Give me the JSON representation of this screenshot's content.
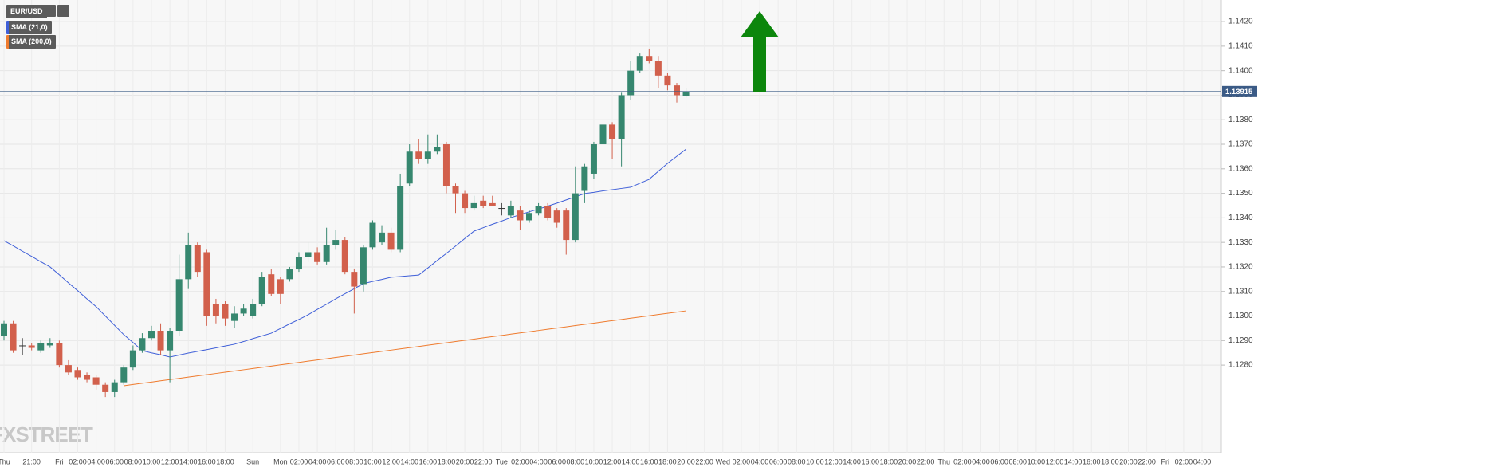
{
  "chart_data": {
    "type": "candlestick",
    "symbol": "EUR/USD",
    "watermark": "FXSTREET",
    "up_color": "#36876f",
    "down_color": "#d2604c",
    "doji_color": "#333333",
    "grid": true,
    "ylim": [
      1.12443,
      1.14288
    ],
    "yticks": [
      {
        "value": 1.128,
        "label": "1.1280"
      },
      {
        "value": 1.129,
        "label": "1.1290"
      },
      {
        "value": 1.13,
        "label": "1.1300"
      },
      {
        "value": 1.131,
        "label": "1.1310"
      },
      {
        "value": 1.132,
        "label": "1.1320"
      },
      {
        "value": 1.133,
        "label": "1.1330"
      },
      {
        "value": 1.134,
        "label": "1.1340"
      },
      {
        "value": 1.135,
        "label": "1.1350"
      },
      {
        "value": 1.136,
        "label": "1.1360"
      },
      {
        "value": 1.137,
        "label": "1.1370"
      },
      {
        "value": 1.138,
        "label": "1.1380"
      },
      {
        "value": 1.139,
        "label": "1.1390"
      },
      {
        "value": 1.14,
        "label": "1.1400"
      },
      {
        "value": 1.141,
        "label": "1.1410"
      },
      {
        "value": 1.142,
        "label": "1.1420"
      }
    ],
    "last_price": 1.13915,
    "last_price_color": "#3b5b86",
    "categories": [
      "Thu",
      null,
      null,
      "21:00",
      null,
      null,
      "Fri",
      null,
      "02:00",
      null,
      "04:00",
      null,
      "06:00",
      null,
      "08:00",
      null,
      "10:00",
      null,
      "12:00",
      null,
      "14:00",
      null,
      "16:00",
      null,
      "18:00",
      null,
      null,
      "Sun",
      null,
      null,
      "Mon",
      null,
      "02:00",
      null,
      "04:00",
      null,
      "06:00",
      null,
      "08:00",
      null,
      "10:00",
      null,
      "12:00",
      null,
      "14:00",
      null,
      "16:00",
      null,
      "18:00",
      null,
      "20:00",
      null,
      "22:00",
      null,
      "Tue",
      null,
      "02:00",
      null,
      "04:00",
      null,
      "06:00",
      null,
      "08:00",
      null,
      "10:00",
      null,
      "12:00",
      null,
      "14:00",
      null,
      "16:00",
      null,
      "18:00",
      null,
      "20:00",
      null,
      "22:00",
      null,
      "Wed",
      null,
      "02:00",
      null,
      "04:00",
      null,
      "06:00",
      null,
      "08:00",
      null,
      "10:00",
      null,
      "12:00",
      null,
      "14:00",
      null,
      "16:00",
      null,
      "18:00",
      null,
      "20:00",
      null,
      "22:00",
      null,
      "Thu",
      null,
      "02:00",
      null,
      "04:00",
      null,
      "06:00",
      null,
      "08:00",
      null,
      "10:00",
      null,
      "12:00",
      null,
      "14:00",
      null,
      "16:00",
      null,
      "18:00",
      null,
      "20:00",
      null,
      "22:00",
      null,
      "Fri",
      null,
      "02:00",
      null,
      "04:00"
    ],
    "open": [
      1.1292,
      1.1297,
      1.1288,
      1.1288,
      1.1286,
      1.1288,
      1.1289,
      1.128,
      1.1278,
      1.1276,
      1.1275,
      1.1272,
      1.1269,
      1.1273,
      1.1279,
      1.1286,
      1.1291,
      1.1294,
      1.1286,
      1.1294,
      1.1315,
      1.1329,
      1.1326,
      1.1305,
      1.1305,
      1.1298,
      1.1301,
      1.13,
      1.1305,
      1.1317,
      1.1315,
      1.1315,
      1.1319,
      1.1324,
      1.1326,
      1.1322,
      1.1329,
      1.1331,
      1.1318,
      1.1313,
      1.1328,
      1.133,
      1.1334,
      1.1327,
      1.1354,
      1.1367,
      1.1364,
      1.1367,
      1.137,
      1.1353,
      1.135,
      1.1344,
      1.1347,
      1.1346,
      1.1344,
      1.1341,
      1.1343,
      1.1339,
      1.1342,
      1.1345,
      1.1343,
      1.1343,
      1.1331,
      1.1351,
      1.1358,
      1.137,
      1.1378,
      1.1372,
      1.139,
      1.14,
      1.1406,
      1.1404,
      1.1398,
      1.1394,
      1.13895,
      null,
      null,
      null,
      null,
      null,
      null,
      null,
      null,
      null,
      null,
      null,
      null,
      null,
      null,
      null,
      null,
      null,
      null,
      null,
      null,
      null,
      null,
      null,
      null,
      null,
      null,
      null,
      null,
      null,
      null,
      null,
      null,
      null,
      null,
      null,
      null,
      null,
      null,
      null,
      null,
      null,
      null,
      null,
      null,
      null,
      null,
      null,
      null,
      null,
      null,
      null,
      null,
      null,
      null,
      null,
      null
    ],
    "high": [
      1.1298,
      1.1298,
      1.1291,
      1.1289,
      1.129,
      1.1291,
      1.129,
      1.1282,
      1.1279,
      1.1277,
      1.1276,
      1.1273,
      1.1274,
      1.128,
      1.1288,
      1.1293,
      1.1296,
      1.1297,
      1.1295,
      1.1325,
      1.1334,
      1.133,
      1.1327,
      1.1307,
      1.1306,
      1.1304,
      1.1305,
      1.1307,
      1.1318,
      1.1319,
      1.1316,
      1.132,
      1.1326,
      1.133,
      1.1328,
      1.1336,
      1.1335,
      1.1332,
      1.1319,
      1.1329,
      1.1339,
      1.1337,
      1.1336,
      1.1358,
      1.137,
      1.1372,
      1.1374,
      1.1374,
      1.1371,
      1.1354,
      1.1351,
      1.1349,
      1.1349,
      1.1349,
      1.1346,
      1.1347,
      1.1345,
      1.1343,
      1.1346,
      1.1346,
      1.1344,
      1.1344,
      1.1361,
      1.1362,
      1.1371,
      1.1381,
      1.1379,
      1.1391,
      1.1404,
      1.1407,
      1.1409,
      1.1406,
      1.1399,
      1.1395,
      1.1393,
      null,
      null,
      null,
      null,
      null,
      null,
      null,
      null,
      null,
      null,
      null,
      null,
      null,
      null,
      null,
      null,
      null,
      null,
      null,
      null,
      null,
      null,
      null,
      null,
      null,
      null,
      null,
      null,
      null,
      null,
      null,
      null,
      null,
      null,
      null,
      null,
      null,
      null,
      null,
      null,
      null,
      null,
      null,
      null,
      null,
      null,
      null,
      null,
      null,
      null,
      null,
      null,
      null,
      null,
      null,
      null
    ],
    "low": [
      1.129,
      1.1285,
      1.1284,
      1.1286,
      1.1285,
      1.1287,
      1.1279,
      1.1276,
      1.1274,
      1.1273,
      1.127,
      1.1267,
      1.1267,
      1.1272,
      1.1278,
      1.1285,
      1.129,
      1.1284,
      1.1273,
      1.1292,
      1.1311,
      1.1316,
      1.1296,
      1.1297,
      1.1296,
      1.1295,
      1.13,
      1.1299,
      1.1304,
      1.1308,
      1.1305,
      1.1314,
      1.1318,
      1.1322,
      1.1321,
      1.1321,
      1.1327,
      1.1317,
      1.1301,
      1.131,
      1.1327,
      1.1329,
      1.1326,
      1.1326,
      1.1353,
      1.1362,
      1.1362,
      1.1366,
      1.135,
      1.1342,
      1.1342,
      1.1343,
      1.1344,
      1.1345,
      1.1341,
      1.134,
      1.1335,
      1.1338,
      1.1341,
      1.1339,
      1.1336,
      1.1325,
      1.133,
      1.1346,
      1.1356,
      1.1368,
      1.1364,
      1.1361,
      1.1388,
      1.1399,
      1.1403,
      1.1393,
      1.1392,
      1.1387,
      1.1389,
      null,
      null,
      null,
      null,
      null,
      null,
      null,
      null,
      null,
      null,
      null,
      null,
      null,
      null,
      null,
      null,
      null,
      null,
      null,
      null,
      null,
      null,
      null,
      null,
      null,
      null,
      null,
      null,
      null,
      null,
      null,
      null,
      null,
      null,
      null,
      null,
      null,
      null,
      null,
      null,
      null,
      null,
      null,
      null,
      null,
      null,
      null,
      null,
      null,
      null,
      null,
      null,
      null,
      null,
      null,
      null
    ],
    "close": [
      1.1297,
      1.1286,
      1.1288,
      1.1287,
      1.1289,
      1.1289,
      1.128,
      1.1277,
      1.1275,
      1.1274,
      1.1272,
      1.1269,
      1.1273,
      1.1279,
      1.1286,
      1.1291,
      1.1294,
      1.1286,
      1.1294,
      1.1315,
      1.1329,
      1.1318,
      1.13,
      1.13,
      1.1299,
      1.1301,
      1.1303,
      1.1305,
      1.1316,
      1.1309,
      1.1309,
      1.1319,
      1.1324,
      1.1326,
      1.1322,
      1.1329,
      1.1331,
      1.1318,
      1.1312,
      1.1328,
      1.1338,
      1.1334,
      1.1327,
      1.1353,
      1.1367,
      1.1364,
      1.1367,
      1.1369,
      1.1353,
      1.135,
      1.1344,
      1.1346,
      1.1345,
      1.1345,
      1.1344,
      1.1345,
      1.1339,
      1.1342,
      1.1345,
      1.134,
      1.1338,
      1.1331,
      1.135,
      1.1361,
      1.137,
      1.1378,
      1.1372,
      1.139,
      1.14,
      1.1406,
      1.1404,
      1.1398,
      1.1394,
      1.139,
      1.13915,
      null,
      null,
      null,
      null,
      null,
      null,
      null,
      null,
      null,
      null,
      null,
      null,
      null,
      null,
      null,
      null,
      null,
      null,
      null,
      null,
      null,
      null,
      null,
      null,
      null,
      null,
      null,
      null,
      null,
      null,
      null,
      null,
      null,
      null,
      null,
      null,
      null,
      null,
      null,
      null,
      null,
      null,
      null,
      null,
      null,
      null,
      null,
      null,
      null,
      null,
      null,
      null,
      null,
      null,
      null,
      null
    ],
    "series": [
      {
        "name": "SMA (21,0)",
        "color": "#3f5fd8",
        "values": [
          1.13307,
          1.13286,
          1.13264,
          1.13243,
          1.13221,
          1.132,
          1.13168,
          1.13135,
          1.13103,
          1.1307,
          1.13038,
          1.13,
          1.12962,
          1.12924,
          1.12892,
          1.12859,
          1.1285,
          1.12842,
          1.12833,
          1.12841,
          1.12849,
          1.12856,
          1.12863,
          1.1287,
          1.12878,
          1.12885,
          1.12896,
          1.12908,
          1.12919,
          1.1293,
          1.12949,
          1.12968,
          1.12986,
          1.13005,
          1.13027,
          1.13048,
          1.1307,
          1.13091,
          1.13111,
          1.13132,
          1.13141,
          1.13149,
          1.13158,
          1.13161,
          1.13164,
          1.13167,
          1.13196,
          1.13226,
          1.13255,
          1.13285,
          1.13316,
          1.13346,
          1.1336,
          1.13374,
          1.13387,
          1.13401,
          1.13413,
          1.13425,
          1.13436,
          1.13448,
          1.1346,
          1.13473,
          1.13486,
          1.13499,
          1.13504,
          1.1351,
          1.13515,
          1.1352,
          1.13525,
          1.13541,
          1.13557,
          1.1359,
          1.13622,
          1.13651,
          1.1368,
          null,
          null,
          null,
          null,
          null,
          null,
          null,
          null,
          null,
          null,
          null,
          null,
          null,
          null,
          null,
          null,
          null,
          null,
          null,
          null,
          null,
          null,
          null,
          null,
          null,
          null,
          null,
          null,
          null,
          null,
          null,
          null,
          null,
          null,
          null,
          null,
          null,
          null,
          null,
          null,
          null,
          null,
          null,
          null,
          null,
          null,
          null,
          null,
          null,
          null,
          null,
          null,
          null,
          null,
          null,
          null
        ]
      },
      {
        "name": "SMA (200,0)",
        "color": "#ef7b2e",
        "values": [
          null,
          null,
          null,
          null,
          null,
          null,
          null,
          null,
          null,
          null,
          null,
          null,
          null,
          1.12716,
          1.12721,
          1.12726,
          1.12731,
          1.12736,
          1.12741,
          1.12746,
          1.12751,
          1.12756,
          1.12761,
          1.12766,
          1.12771,
          1.12776,
          1.12781,
          1.12786,
          1.12791,
          1.12796,
          1.12801,
          1.12806,
          1.12811,
          1.12816,
          1.12821,
          1.12826,
          1.12831,
          1.12836,
          1.12841,
          1.12846,
          1.12851,
          1.12856,
          1.12861,
          1.12866,
          1.12871,
          1.12876,
          1.12881,
          1.12886,
          1.12891,
          1.12896,
          1.12901,
          1.12906,
          1.12911,
          1.12916,
          1.12921,
          1.12926,
          1.12931,
          1.12936,
          1.12941,
          1.12946,
          1.12951,
          1.12956,
          1.12961,
          1.12966,
          1.12971,
          1.12976,
          1.12981,
          1.12986,
          1.12991,
          1.12996,
          1.13001,
          1.13006,
          1.13011,
          1.13016,
          1.13021,
          null,
          null,
          null,
          null,
          null,
          null,
          null,
          null,
          null,
          null,
          null,
          null,
          null,
          null,
          null,
          null,
          null,
          null,
          null,
          null,
          null,
          null,
          null,
          null,
          null,
          null,
          null,
          null,
          null,
          null,
          null,
          null,
          null,
          null,
          null,
          null,
          null,
          null,
          null,
          null,
          null,
          null,
          null,
          null,
          null,
          null,
          null,
          null,
          null,
          null,
          null,
          null,
          null,
          null,
          null,
          null
        ]
      }
    ]
  }
}
